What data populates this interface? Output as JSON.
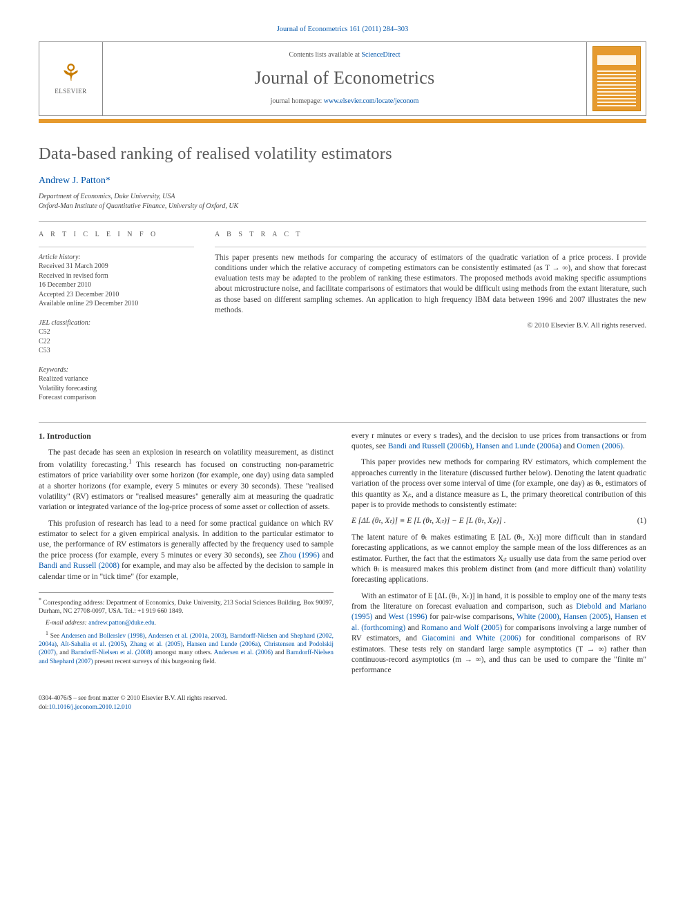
{
  "journal_ref": "Journal of Econometrics 161 (2011) 284–303",
  "masthead": {
    "publisher_logo_label": "ELSEVIER",
    "contents_prefix": "Contents lists available at ",
    "contents_link": "ScienceDirect",
    "journal_name": "Journal of Econometrics",
    "homepage_prefix": "journal homepage: ",
    "homepage_link": "www.elsevier.com/locate/jeconom"
  },
  "paper": {
    "title": "Data-based ranking of realised volatility estimators",
    "author": "Andrew J. Patton",
    "author_mark": "*",
    "affiliations": [
      "Department of Economics, Duke University, USA",
      "Oxford-Man Institute of Quantitative Finance, University of Oxford, UK"
    ]
  },
  "info": {
    "heading": "A R T I C L E   I N F O",
    "history_label": "Article history:",
    "history": [
      "Received 31 March 2009",
      "Received in revised form",
      "16 December 2010",
      "Accepted 23 December 2010",
      "Available online 29 December 2010"
    ],
    "jel_label": "JEL classification:",
    "jel": [
      "C52",
      "C22",
      "C53"
    ],
    "keywords_label": "Keywords:",
    "keywords": [
      "Realized variance",
      "Volatility forecasting",
      "Forecast comparison"
    ]
  },
  "abstract": {
    "heading": "A B S T R A C T",
    "text": "This paper presents new methods for comparing the accuracy of estimators of the quadratic variation of a price process. I provide conditions under which the relative accuracy of competing estimators can be consistently estimated (as T → ∞), and show that forecast evaluation tests may be adapted to the problem of ranking these estimators. The proposed methods avoid making specific assumptions about microstructure noise, and facilitate comparisons of estimators that would be difficult using methods from the extant literature, such as those based on different sampling schemes. An application to high frequency IBM data between 1996 and 2007 illustrates the new methods.",
    "copyright": "© 2010 Elsevier B.V. All rights reserved."
  },
  "intro": {
    "heading": "1.  Introduction",
    "p1_a": "The past decade has seen an explosion in research on volatility measurement, as distinct from volatility forecasting.",
    "p1_b": " This research has focused on constructing non-parametric estimators of price variability over some horizon (for example, one day) using data sampled at a shorter horizons (for example, every 5 minutes or every 30 seconds). These \"realised volatility\" (RV) estimators or \"realised measures\" generally aim at measuring the quadratic variation or integrated variance of the log-price process of some asset or collection of assets.",
    "p2_a": "This profusion of research has lead to a need for some practical guidance on which RV estimator to select for a given empirical analysis. In addition to the particular estimator to use, the performance of RV estimators is generally affected by the frequency used to sample the price process (for example, every 5 minutes or every 30 seconds), see ",
    "p2_ref1": "Zhou (1996)",
    "p2_mid": " and ",
    "p2_ref2": "Bandi and Russell (2008)",
    "p2_b": " for example, and may also be affected by the decision to sample in calendar time or in \"tick time\" (for example,",
    "p3_a": "every r minutes or every s trades), and the decision to use prices from transactions or from quotes, see ",
    "p3_ref1": "Bandi and Russell (2006b)",
    "p3_m1": ", ",
    "p3_ref2": "Hansen and Lunde (2006a)",
    "p3_m2": " and ",
    "p3_ref3": "Oomen (2006)",
    "p3_end": ".",
    "p4": "This paper provides new methods for comparing RV estimators, which complement the approaches currently in the literature (discussed further below). Denoting the latent quadratic variation of the process over some interval of time (for example, one day) as θₜ, estimators of this quantity as Xᵢₜ, and a distance measure as L, the primary theoretical contribution of this paper is to provide methods to consistently estimate:",
    "eq1": "E [ΔL (θₜ, Xₜ)] ≡ E [L (θₜ, Xᵢₜ)] − E [L (θₜ, Xⱼₜ)] .",
    "eq1num": "(1)",
    "p5": "The latent nature of θₜ makes estimating E [ΔL (θₜ, Xₜ)] more difficult than in standard forecasting applications, as we cannot employ the sample mean of the loss differences as an estimator. Further, the fact that the estimators Xᵢₜ usually use data from the same period over which θₜ is measured makes this problem distinct from (and more difficult than) volatility forecasting applications.",
    "p6_a": "With an estimator of E [ΔL (θₜ, Xₜ)] in hand, it is possible to employ one of the many tests from the literature on forecast evaluation and comparison, such as ",
    "p6_r1": "Diebold and Mariano (1995)",
    "p6_m1": " and ",
    "p6_r2": "West (1996)",
    "p6_m2": " for pair-wise comparisons, ",
    "p6_r3": "White (2000)",
    "p6_m3": ", ",
    "p6_r4": "Hansen (2005)",
    "p6_m4": ", ",
    "p6_r5": "Hansen et al. (forthcoming)",
    "p6_m5": " and ",
    "p6_r6": "Romano and Wolf (2005)",
    "p6_m6": " for comparisons involving a large number of RV estimators, and ",
    "p6_r7": "Giacomini and White (2006)",
    "p6_b": " for conditional comparisons of RV estimators. These tests rely on standard large sample asymptotics (T → ∞) rather than continuous-record asymptotics (m → ∞), and thus can be used to compare the \"finite m\" performance"
  },
  "footnotes": {
    "star_a": "Corresponding address: Department of Economics, Duke University, 213 Social Sciences Building, Box 90097, Durham, NC 27708-0097, USA. Tel.: +1 919 660 1849.",
    "email_label": "E-mail address: ",
    "email": "andrew.patton@duke.edu",
    "email_end": ".",
    "fn1_a": "See ",
    "fn1_r1": "Andersen and Bollerslev (1998)",
    "fn1_m1": ", ",
    "fn1_r2": "Andersen et al. (2001a, 2003)",
    "fn1_m2": ", ",
    "fn1_r3": "Barndorff-Nielsen and Shephard (2002, 2004a)",
    "fn1_m3": ", ",
    "fn1_r4": "Aït-Sahalia et al. (2005)",
    "fn1_m4": ", ",
    "fn1_r5": "Zhang et al. (2005)",
    "fn1_m5": ", ",
    "fn1_r6": "Hansen and Lunde (2006a)",
    "fn1_m6": ", ",
    "fn1_r7": "Christensen and Podolskij (2007)",
    "fn1_m7": ", and ",
    "fn1_r8": "Barndorff-Nielsen et al. (2008)",
    "fn1_m8": " amongst many others. ",
    "fn1_r9": "Andersen et al. (2006)",
    "fn1_m9": " and ",
    "fn1_r10": "Barndorff-Nielsen and Shephard (2007)",
    "fn1_b": " present recent surveys of this burgeoning field."
  },
  "pagefoot": {
    "line1": "0304-4076/$ – see front matter © 2010 Elsevier B.V. All rights reserved.",
    "doi_label": "doi:",
    "doi": "10.1016/j.jeconom.2010.12.010"
  },
  "colors": {
    "link": "#0055aa",
    "accent": "#e69a2e",
    "rule": "#bfbfbf",
    "text": "#3a3a3a"
  }
}
